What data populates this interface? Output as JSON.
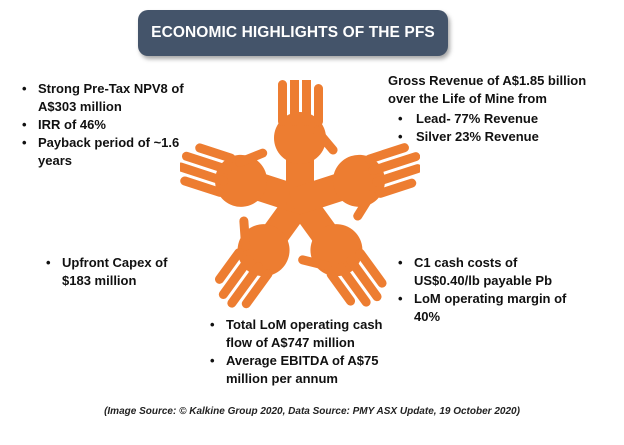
{
  "title": "ECONOMIC HIGHLIGHTS OF THE PFS",
  "top_left": {
    "items": [
      "Strong Pre-Tax NPV8 of A$303 million",
      "IRR of 46%",
      "Payback period of ~1.6 years"
    ]
  },
  "top_right": {
    "intro": "Gross Revenue of A$1.85 billion over the Life of Mine from",
    "items": [
      "Lead- 77% Revenue",
      "Silver 23% Revenue"
    ]
  },
  "mid_left": {
    "items": [
      "Upfront Capex of $183 million"
    ]
  },
  "mid_right": {
    "items": [
      "C1 cash costs of US$0.40/lb payable Pb",
      "LoM operating margin of 40%"
    ]
  },
  "bottom": {
    "items": [
      "Total LoM operating cash flow of A$747 million",
      "Average EBITDA of A$75 million per annum"
    ]
  },
  "caption": "(Image Source: © Kalkine Group 2020, Data Source: PMY ASX Update, 19 October 2020)",
  "colors": {
    "title_bg": "#44546a",
    "hands": "#ed7d31"
  }
}
